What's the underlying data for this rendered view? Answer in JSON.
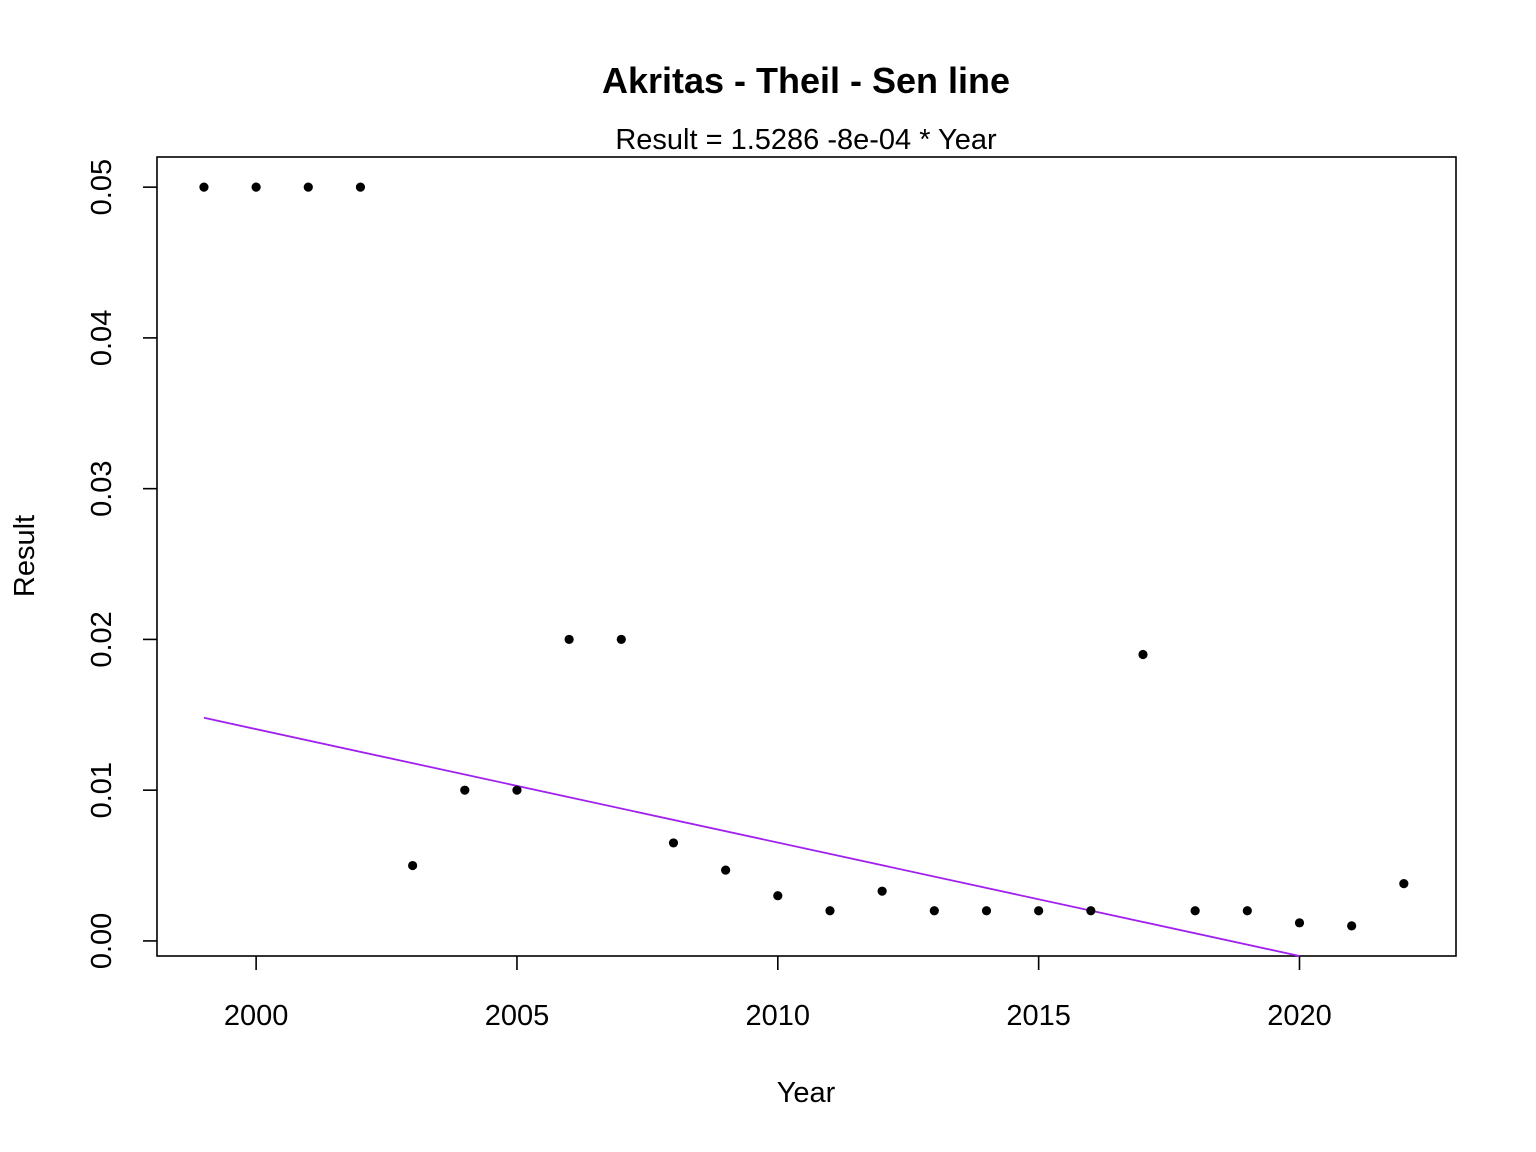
{
  "chart_data": {
    "type": "scatter",
    "title": "Akritas - Theil - Sen line",
    "subtitle": "Result = 1.5286 -8e-04 * Year",
    "xlabel": "Year",
    "ylabel": "Result",
    "xlim": [
      1998.1,
      2023.0
    ],
    "ylim": [
      -0.001,
      0.052
    ],
    "xticks": [
      2000,
      2005,
      2010,
      2015,
      2020
    ],
    "yticks": [
      0.0,
      0.01,
      0.02,
      0.03,
      0.04,
      0.05
    ],
    "xtick_labels": [
      "2000",
      "2005",
      "2010",
      "2015",
      "2020"
    ],
    "ytick_labels": [
      "0.00",
      "0.01",
      "0.02",
      "0.03",
      "0.04",
      "0.05"
    ],
    "grid": false,
    "series": [
      {
        "x": [
          1999,
          2000,
          2001,
          2002,
          2003,
          2004,
          2005,
          2006,
          2007,
          2008,
          2009,
          2010,
          2011,
          2012,
          2013,
          2014,
          2015,
          2016,
          2017,
          2018,
          2019,
          2020,
          2021,
          2022
        ],
        "y": [
          0.05,
          0.05,
          0.05,
          0.05,
          0.005,
          0.01,
          0.01,
          0.02,
          0.02,
          0.0065,
          0.0047,
          0.003,
          0.002,
          0.0033,
          0.002,
          0.002,
          0.002,
          0.002,
          0.019,
          0.002,
          0.002,
          0.0012,
          0.001,
          0.0038
        ],
        "color": "#000000"
      }
    ],
    "fit_line": {
      "intercept": 1.5286,
      "slope": -0.0008,
      "x_start": 1999,
      "y_start": 0.0148,
      "x_end": 2020,
      "y_end": -0.001,
      "color": "#a020f0"
    }
  }
}
